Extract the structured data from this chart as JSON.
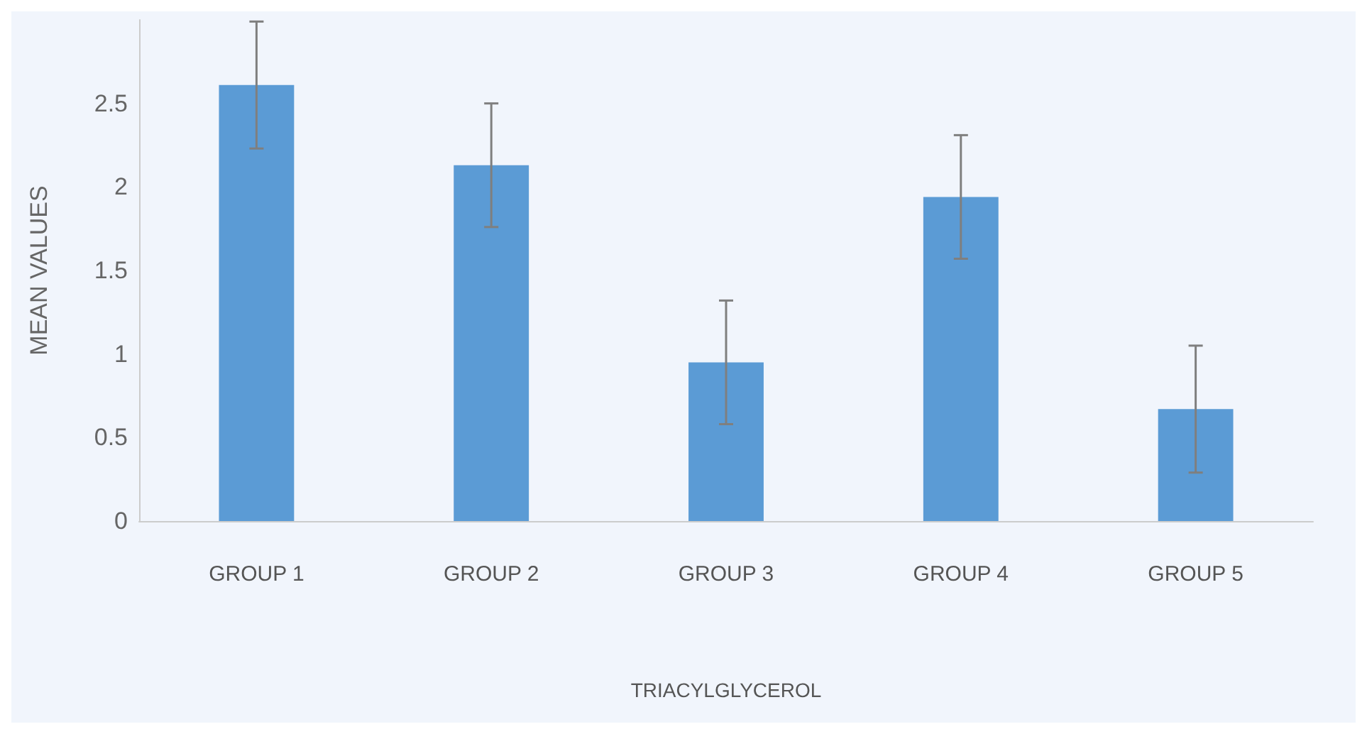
{
  "chart_data": {
    "type": "bar",
    "xlabel": "TRIACYLGLYCEROL",
    "ylabel": "MEAN VALUES",
    "categories": [
      "GROUP 1",
      "GROUP 2",
      "GROUP 3",
      "GROUP 4",
      "GROUP 5"
    ],
    "values": [
      2.61,
      2.13,
      0.95,
      1.94,
      0.67
    ],
    "errors": [
      0.38,
      0.37,
      0.37,
      0.37,
      0.38
    ],
    "color": "#5b9bd5",
    "ylim": [
      0,
      3
    ],
    "yticks": [
      0,
      0.5,
      1,
      1.5,
      2,
      2.5
    ],
    "grid": false
  }
}
